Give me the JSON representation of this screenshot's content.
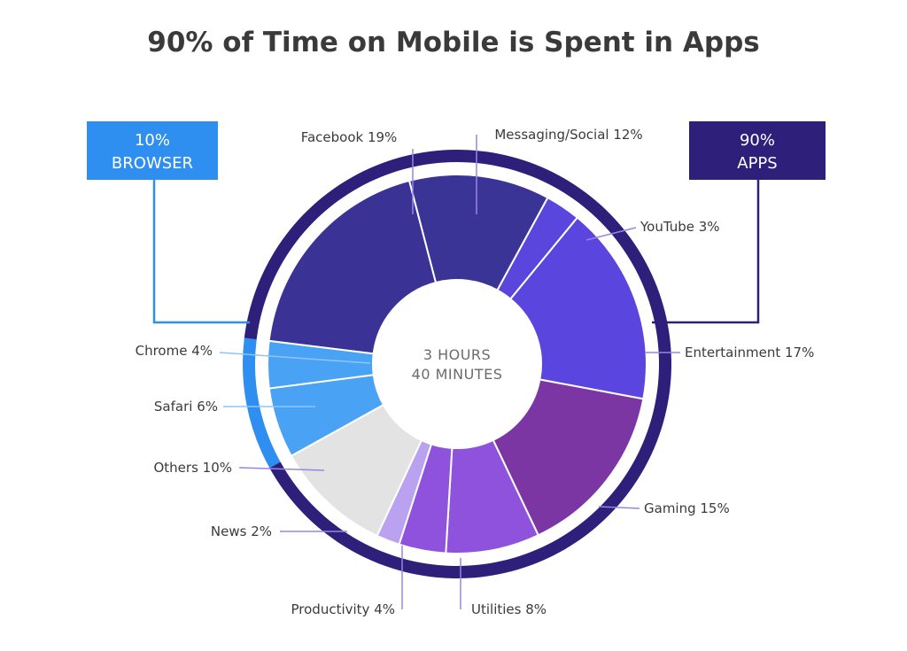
{
  "chart_data": {
    "type": "pie",
    "title": "90% of Time on Mobile is Spent in Apps",
    "center_label": [
      "3 HOURS",
      "40 MINUTES"
    ],
    "slices": [
      {
        "name": "Facebook",
        "value": 19,
        "label": "Facebook 19%",
        "color": "#3b3295",
        "group": "apps"
      },
      {
        "name": "Messaging/Social",
        "value": 12,
        "label": "Messaging/Social 12%",
        "color": "#3a3497",
        "group": "apps"
      },
      {
        "name": "YouTube",
        "value": 3,
        "label": "YouTube 3%",
        "color": "#5a46dd",
        "group": "apps"
      },
      {
        "name": "Entertainment",
        "value": 17,
        "label": "Entertainment 17%",
        "color": "#5b45df",
        "group": "apps"
      },
      {
        "name": "Gaming",
        "value": 15,
        "label": "Gaming 15%",
        "color": "#7b36a4",
        "group": "apps"
      },
      {
        "name": "Utilities",
        "value": 8,
        "label": "Utilities 8%",
        "color": "#8f52dc",
        "group": "apps"
      },
      {
        "name": "Productivity",
        "value": 4,
        "label": "Productivity 4%",
        "color": "#8f52dc",
        "group": "apps"
      },
      {
        "name": "News",
        "value": 2,
        "label": "News 2%",
        "color": "#bba2f0",
        "group": "apps"
      },
      {
        "name": "Others",
        "value": 10,
        "label": "Others 10%",
        "color": "#e3e3e3",
        "group": "apps"
      },
      {
        "name": "Safari",
        "value": 6,
        "label": "Safari 6%",
        "color": "#4aa2f4",
        "group": "browser"
      },
      {
        "name": "Chrome",
        "value": 4,
        "label": "Chrome 4%",
        "color": "#4aa2f4",
        "group": "browser"
      }
    ],
    "groups": [
      {
        "name": "browser",
        "value": 10,
        "lines": [
          "10%",
          "BROWSER"
        ],
        "color": "#2f8ff0"
      },
      {
        "name": "apps",
        "value": 90,
        "lines": [
          "90%",
          "APPS"
        ],
        "color": "#2e207a"
      }
    ]
  }
}
